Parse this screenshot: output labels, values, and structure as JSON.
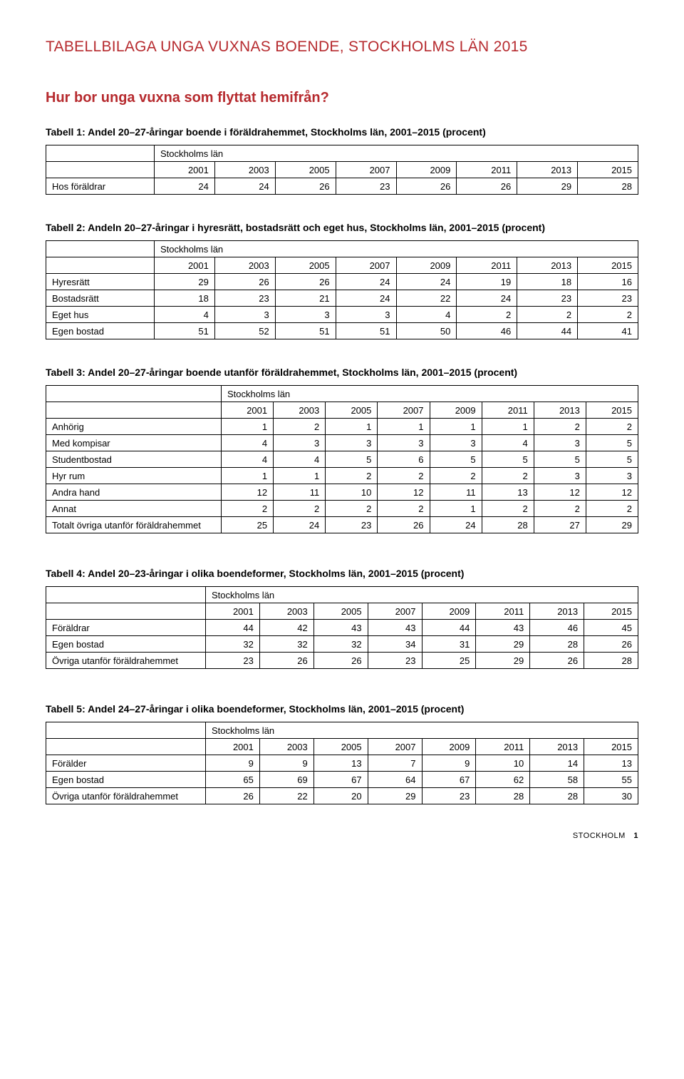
{
  "doc_title": "TABELLBILAGA UNGA VUXNAS BOENDE, STOCKHOLMS LÄN 2015",
  "section_title": "Hur bor unga vuxna som flyttat hemifrån?",
  "region_label": "Stockholms län",
  "years": [
    "2001",
    "2003",
    "2005",
    "2007",
    "2009",
    "2011",
    "2013",
    "2015"
  ],
  "footer_region": "STOCKHOLM",
  "footer_page": "1",
  "colors": {
    "accent": "#b62a2e",
    "border": "#000000",
    "background": "#ffffff",
    "text": "#000000"
  },
  "tables": {
    "t1": {
      "caption": "Tabell 1: Andel 20–27-åringar boende i föräldrahemmet, Stockholms län, 2001–2015 (procent)",
      "rows": [
        {
          "label": "Hos föräldrar",
          "v": [
            "24",
            "24",
            "26",
            "23",
            "26",
            "26",
            "29",
            "28"
          ]
        }
      ]
    },
    "t2": {
      "caption": "Tabell 2: Andeln 20–27-åringar i hyresrätt, bostadsrätt och eget hus, Stockholms län, 2001–2015 (procent)",
      "rows": [
        {
          "label": "Hyresrätt",
          "v": [
            "29",
            "26",
            "26",
            "24",
            "24",
            "19",
            "18",
            "16"
          ]
        },
        {
          "label": "Bostadsrätt",
          "v": [
            "18",
            "23",
            "21",
            "24",
            "22",
            "24",
            "23",
            "23"
          ]
        },
        {
          "label": "Eget hus",
          "v": [
            "4",
            "3",
            "3",
            "3",
            "4",
            "2",
            "2",
            "2"
          ]
        },
        {
          "label": "Egen bostad",
          "v": [
            "51",
            "52",
            "51",
            "51",
            "50",
            "46",
            "44",
            "41"
          ]
        }
      ]
    },
    "t3": {
      "caption": "Tabell 3: Andel 20–27-åringar boende utanför föräldrahemmet, Stockholms län, 2001–2015 (procent)",
      "rows": [
        {
          "label": "Anhörig",
          "v": [
            "1",
            "2",
            "1",
            "1",
            "1",
            "1",
            "2",
            "2"
          ]
        },
        {
          "label": "Med kompisar",
          "v": [
            "4",
            "3",
            "3",
            "3",
            "3",
            "4",
            "3",
            "5"
          ]
        },
        {
          "label": "Studentbostad",
          "v": [
            "4",
            "4",
            "5",
            "6",
            "5",
            "5",
            "5",
            "5"
          ]
        },
        {
          "label": "Hyr rum",
          "v": [
            "1",
            "1",
            "2",
            "2",
            "2",
            "2",
            "3",
            "3"
          ]
        },
        {
          "label": "Andra hand",
          "v": [
            "12",
            "11",
            "10",
            "12",
            "11",
            "13",
            "12",
            "12"
          ]
        },
        {
          "label": "Annat",
          "v": [
            "2",
            "2",
            "2",
            "2",
            "1",
            "2",
            "2",
            "2"
          ]
        },
        {
          "label": "Totalt övriga utanför föräldrahemmet",
          "v": [
            "25",
            "24",
            "23",
            "26",
            "24",
            "28",
            "27",
            "29"
          ]
        }
      ]
    },
    "t4": {
      "caption": "Tabell 4: Andel 20–23-åringar i olika boendeformer, Stockholms län, 2001–2015 (procent)",
      "rows": [
        {
          "label": "Föräldrar",
          "v": [
            "44",
            "42",
            "43",
            "43",
            "44",
            "43",
            "46",
            "45"
          ]
        },
        {
          "label": "Egen bostad",
          "v": [
            "32",
            "32",
            "32",
            "34",
            "31",
            "29",
            "28",
            "26"
          ]
        },
        {
          "label": "Övriga utanför föräldrahemmet",
          "v": [
            "23",
            "26",
            "26",
            "23",
            "25",
            "29",
            "26",
            "28"
          ]
        }
      ]
    },
    "t5": {
      "caption": "Tabell 5: Andel 24–27-åringar i olika boendeformer, Stockholms län, 2001–2015 (procent)",
      "rows": [
        {
          "label": "Förälder",
          "v": [
            "9",
            "9",
            "13",
            "7",
            "9",
            "10",
            "14",
            "13"
          ]
        },
        {
          "label": "Egen bostad",
          "v": [
            "65",
            "69",
            "67",
            "64",
            "67",
            "62",
            "58",
            "55"
          ]
        },
        {
          "label": "Övriga utanför föräldrahemmet",
          "v": [
            "26",
            "22",
            "20",
            "29",
            "23",
            "28",
            "28",
            "30"
          ]
        }
      ]
    }
  }
}
